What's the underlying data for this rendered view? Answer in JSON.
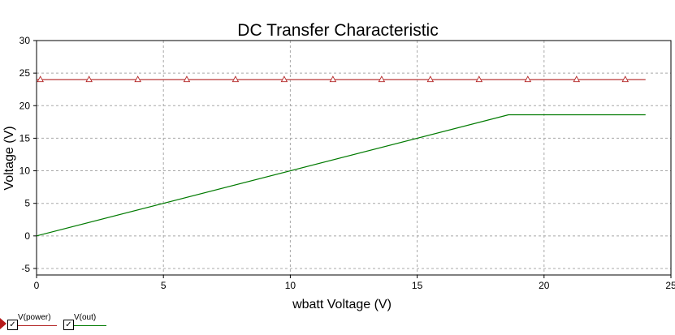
{
  "chart_data": {
    "type": "line",
    "title": "DC Transfer Characteristic",
    "xlabel": "wbatt Voltage (V)",
    "ylabel": "Voltage (V)",
    "xlim": [
      0,
      25
    ],
    "ylim": [
      -6,
      30
    ],
    "xticks": [
      0,
      5,
      10,
      15,
      20,
      25
    ],
    "yticks": [
      -5,
      0,
      5,
      10,
      15,
      20,
      25,
      30
    ],
    "grid": true,
    "legend_position": "bottom-left",
    "series": [
      {
        "name": "V(power)",
        "color": "#b22222",
        "marker": "triangle-open",
        "x": [
          0,
          24
        ],
        "y": [
          24,
          24
        ],
        "marker_x": [
          0.15,
          2.07,
          3.99,
          5.92,
          7.84,
          9.76,
          11.68,
          13.6,
          15.52,
          17.44,
          19.36,
          21.28,
          23.2
        ]
      },
      {
        "name": "V(out)",
        "color": "#007a00",
        "x": [
          0,
          18.6,
          24
        ],
        "y": [
          0,
          18.6,
          18.6
        ]
      }
    ]
  }
}
